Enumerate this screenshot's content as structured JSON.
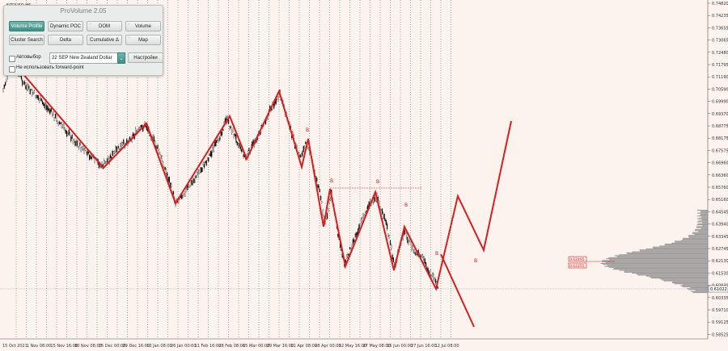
{
  "symbol": "NZDUSD,H6",
  "panel": {
    "title": "ProVolume 2.05",
    "buttons": [
      {
        "label": "Volume Profile",
        "active": true
      },
      {
        "label": "Dynamic POC",
        "active": false
      },
      {
        "label": "DOM",
        "active": false
      },
      {
        "label": "Volume",
        "active": false
      },
      {
        "label": "Cluster Search",
        "active": false
      },
      {
        "label": "Delta",
        "active": false
      },
      {
        "label": "Cumulative Δ",
        "active": false
      },
      {
        "label": "Map",
        "active": false
      }
    ],
    "auto_select_label": "Автовыбор",
    "instrument": "22 SEP New Zealand Dollar",
    "settings_label": "Настройки",
    "forward_point_label": "Не использовать forward-point"
  },
  "price_axis": {
    "labels": [
      "0.74820",
      "0.74235",
      "0.73655",
      "0.73065",
      "0.72480",
      "0.71795",
      "0.71190",
      "0.70590",
      "0.69990",
      "0.69370",
      "0.68775",
      "0.68175",
      "0.67575",
      "0.66960",
      "0.66360",
      "0.65760",
      "0.65160",
      "0.64545",
      "0.63940",
      "0.63345",
      "0.62745",
      "0.62130",
      "0.61530",
      "0.60930",
      "0.60335",
      "0.59710",
      "0.59125",
      "0.58525"
    ],
    "current_price": "0.61022",
    "box_levels": [
      "0.62495",
      "0.62255"
    ]
  },
  "time_axis": {
    "labels": [
      "15 Oct 2021",
      "1 Nov 08:00",
      "15 Nov 16:00",
      "30 Nov 08:00",
      "15 Dec 00:00",
      "29 Dec 16:00",
      "13 Jan 08:00",
      "26 Jan 00:00",
      "11 Feb 16:00",
      "28 Feb 08:00",
      "15 Mar 00:00",
      "29 Mar 16:00",
      "11 Apr 08:00",
      "28 Apr 00:00",
      "12 May 16:00",
      "27 May 08:00",
      "15 Jun 00:00",
      "27 Jun 16:00",
      "12 Jul 08:00"
    ]
  },
  "wave_markers": [
    "B",
    "B",
    "B",
    "B",
    "B",
    "B"
  ],
  "colors": {
    "background": "#fdf3ee",
    "candles": "#000000",
    "wave_line": "#d81e1e",
    "profile": "#8c8c8c",
    "panel_accent": "#3f8f84"
  }
}
